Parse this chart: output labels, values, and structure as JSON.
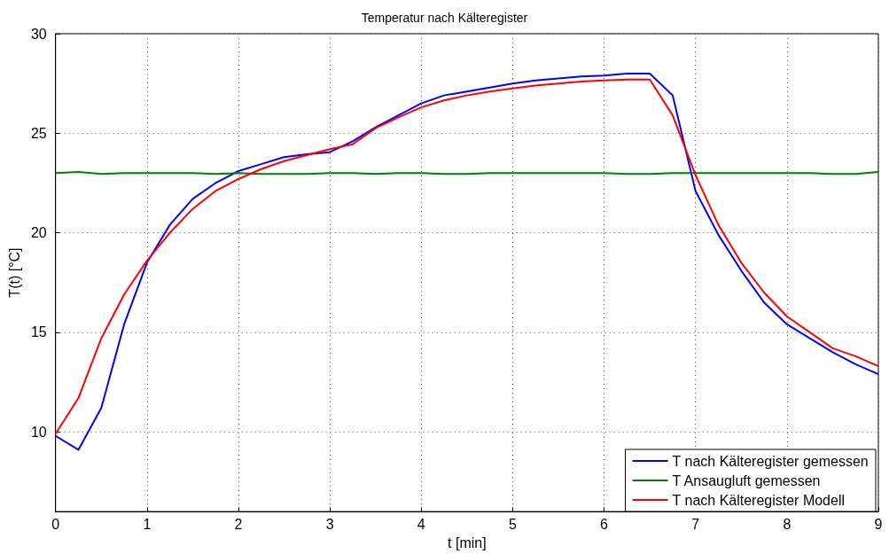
{
  "chart_data": {
    "type": "line",
    "title": "Temperatur nach Kälteregister",
    "xlabel": "t [min]",
    "ylabel": "T(t) [°C]",
    "x": [
      0,
      0.25,
      0.5,
      0.75,
      1,
      1.25,
      1.5,
      1.75,
      2,
      2.25,
      2.5,
      2.75,
      3,
      3.25,
      3.5,
      3.75,
      4,
      4.25,
      4.5,
      4.75,
      5,
      5.25,
      5.5,
      5.75,
      6,
      6.25,
      6.5,
      6.75,
      7,
      7.25,
      7.5,
      7.75,
      8,
      8.25,
      8.5,
      8.75,
      9
    ],
    "series": [
      {
        "name": "T nach Kälteregister gemessen",
        "color": "#0000ff",
        "values": [
          9.8,
          9.1,
          11.2,
          15.4,
          18.5,
          20.4,
          21.7,
          22.5,
          23.1,
          23.45,
          23.8,
          23.95,
          24.05,
          24.6,
          25.3,
          25.9,
          26.5,
          26.9,
          27.1,
          27.3,
          27.5,
          27.65,
          27.75,
          27.85,
          27.9,
          28.0,
          28.0,
          26.9,
          22.1,
          19.9,
          18.1,
          16.5,
          15.4,
          14.7,
          14.0,
          13.4,
          12.9
        ]
      },
      {
        "name": "T Ansaugluft gemessen",
        "color": "#008000",
        "values": [
          23.0,
          23.05,
          22.95,
          23.0,
          23.0,
          23.0,
          23.0,
          22.95,
          23.0,
          22.95,
          22.95,
          22.95,
          23.0,
          23.0,
          22.95,
          23.0,
          23.0,
          22.95,
          22.95,
          23.0,
          23.0,
          23.0,
          23.0,
          23.0,
          23.0,
          22.95,
          22.95,
          23.0,
          23.0,
          23.0,
          23.0,
          23.0,
          23.0,
          23.0,
          22.95,
          22.95,
          23.05
        ]
      },
      {
        "name": "T nach Kälteregister Modell",
        "color": "#ff0000",
        "values": [
          9.9,
          11.7,
          14.7,
          16.9,
          18.6,
          20.0,
          21.2,
          22.1,
          22.7,
          23.2,
          23.6,
          23.9,
          24.2,
          24.45,
          25.25,
          25.8,
          26.3,
          26.65,
          26.9,
          27.1,
          27.25,
          27.4,
          27.5,
          27.6,
          27.65,
          27.7,
          27.7,
          25.9,
          22.9,
          20.4,
          18.5,
          17.0,
          15.8,
          15.0,
          14.2,
          13.8,
          13.3
        ]
      }
    ],
    "xlim": [
      0,
      9
    ],
    "xticks": [
      0,
      1,
      2,
      3,
      4,
      5,
      6,
      7,
      8,
      9
    ],
    "ylim": [
      6,
      30
    ],
    "yticks": [
      10,
      15,
      20,
      25,
      30
    ],
    "grid": true,
    "legend": "bottom right",
    "marker": "none",
    "line_style": "solid"
  }
}
